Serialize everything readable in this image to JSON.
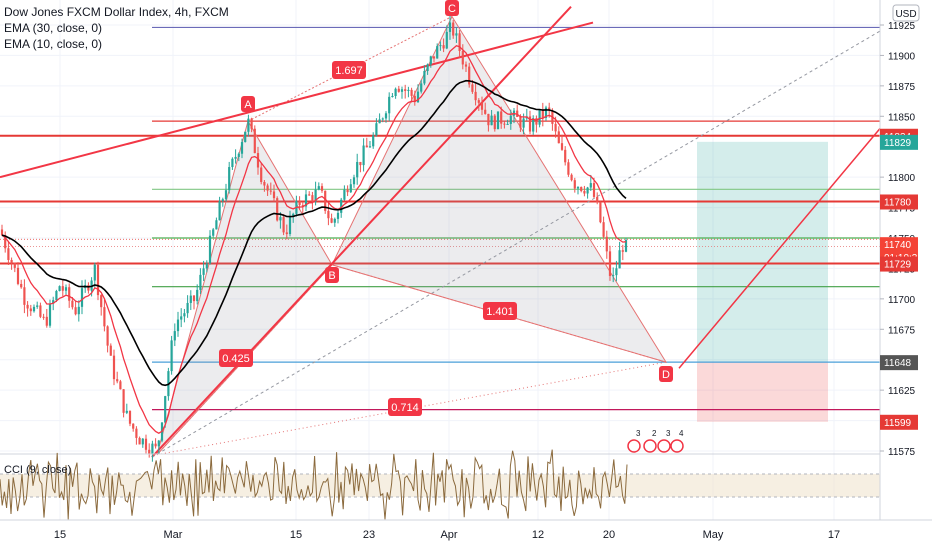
{
  "chart_data": {
    "type": "candlestick",
    "title": "Dow Jones FXCM Dollar Index, 4h, FXCM",
    "indicators": [
      "EMA (30, close, 0)",
      "EMA (10, close, 0)"
    ],
    "currency": "USD",
    "ylim": [
      11575,
      11935
    ],
    "y_ticks": [
      11925,
      11900,
      11875,
      11850,
      11800,
      11775,
      11750,
      11725,
      11700,
      11675,
      11650,
      11625,
      11600,
      11575
    ],
    "y_tick_labels": [
      "11925",
      "11900",
      "11875",
      "11850",
      "11800",
      "11775",
      "11750",
      "11725",
      "11700",
      "11675",
      "11650",
      "11625",
      "11600",
      "11575"
    ],
    "x_ticks": [
      "15",
      "Mar",
      "15",
      "23",
      "Apr",
      "12",
      "20",
      "May",
      "17"
    ],
    "price_labels": [
      {
        "value": 11834,
        "text": "11834",
        "color": "#e53935"
      },
      {
        "value": 11829,
        "text": "11829",
        "color": "#26a69a"
      },
      {
        "value": 11780,
        "text": "11780",
        "color": "#e53935"
      },
      {
        "value": 11740,
        "text": "11740",
        "color": "#f44336"
      },
      {
        "value": 11729,
        "text": "11729",
        "color": "#e53935"
      },
      {
        "value": 11648,
        "text": "11648",
        "color": "#555555"
      },
      {
        "value": 11599,
        "text": "11599",
        "color": "#e53935"
      }
    ],
    "countdown": "01:10:34",
    "harmonic_points": [
      {
        "label": "A",
        "price": 11846
      },
      {
        "label": "B",
        "price": 11728
      },
      {
        "label": "C",
        "price": 11932
      },
      {
        "label": "D",
        "price": 11648
      }
    ],
    "ratios": [
      "1.697",
      "1.401",
      "0.425",
      "0.714"
    ],
    "horizontal_lines": [
      {
        "price": 11923,
        "color": "#6b6bb8"
      },
      {
        "price": 11846,
        "color": "#e53935"
      },
      {
        "price": 11834,
        "color": "#e53935"
      },
      {
        "price": 11790,
        "color": "#81c784"
      },
      {
        "price": 11780,
        "color": "#e53935"
      },
      {
        "price": 11750,
        "color": "#4caf50"
      },
      {
        "price": 11729,
        "color": "#e53935"
      },
      {
        "price": 11710,
        "color": "#43a047"
      },
      {
        "price": 11648,
        "color": "#4a9fd8"
      },
      {
        "price": 11609,
        "color": "#c2185b"
      }
    ],
    "position": {
      "entry": 11648,
      "target": 11829,
      "stop": 11599
    },
    "cci": {
      "title": "CCI (9, close)",
      "levels": [
        "250.00",
        "−250.00"
      ]
    }
  }
}
